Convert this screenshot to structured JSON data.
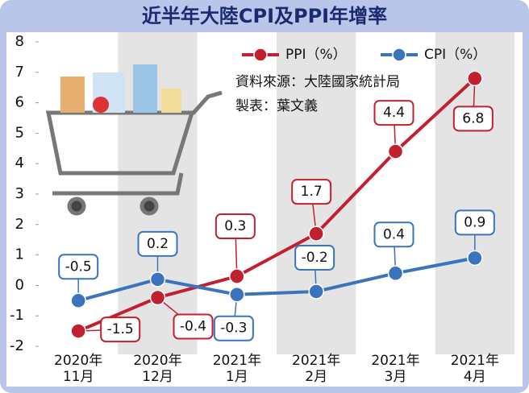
{
  "chart_data": {
    "type": "line",
    "title": "近半年大陸CPI及PPI年增率",
    "annotations": [
      "資料來源：大陸國家統計局",
      "製表：葉文義"
    ],
    "categories": [
      [
        "2020年",
        "11月"
      ],
      [
        "2020年",
        "12月"
      ],
      [
        "2021年",
        "1月"
      ],
      [
        "2021年",
        "2月"
      ],
      [
        "2021年",
        "3月"
      ],
      [
        "2021年",
        "4月"
      ]
    ],
    "series": [
      {
        "name": "PPI（%）",
        "color": "#c3202f",
        "values": [
          -1.5,
          -0.4,
          0.3,
          1.7,
          4.4,
          6.8
        ]
      },
      {
        "name": "CPI（%）",
        "color": "#3a74bd",
        "values": [
          -0.5,
          0.2,
          -0.3,
          -0.2,
          0.4,
          0.9
        ]
      }
    ],
    "ylim": [
      -2,
      8
    ],
    "yticks": [
      -2,
      -1,
      0,
      1,
      2,
      3,
      4,
      5,
      6,
      7,
      8
    ]
  }
}
